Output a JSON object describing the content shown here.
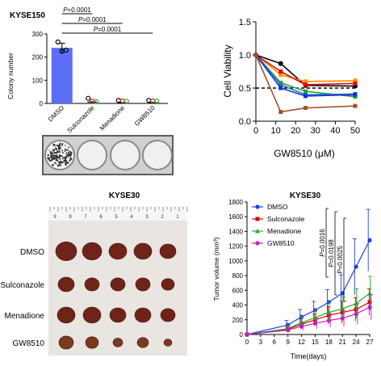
{
  "chart_data": [
    {
      "type": "bar",
      "title": "KYSE150",
      "ylabel": "Colony number",
      "ylim": [
        0,
        300
      ],
      "yticks": [
        0,
        100,
        200,
        300
      ],
      "categories": [
        "DMSO",
        "Sulconazole",
        "Menadione",
        "GW8510"
      ],
      "values": [
        240,
        5,
        3,
        4
      ],
      "errors": [
        20,
        2,
        1,
        1
      ],
      "points": [
        [
          265,
          225,
          230
        ],
        [
          15,
          3,
          0
        ],
        [
          6,
          4,
          2
        ],
        [
          6,
          4,
          3
        ]
      ],
      "point_colors": [
        "#000000",
        "#d62728",
        "#2ca02c",
        "#7b3fb0"
      ],
      "bar_color": "#5b6ef5",
      "significance": [
        "P=0.0001",
        "P=0.0001",
        "P=0.0001"
      ]
    },
    {
      "type": "line",
      "ylabel": "Cell Viability",
      "xlabel": "GW8510 (μM)",
      "xlim": [
        0,
        50
      ],
      "ylim": [
        0,
        1.5
      ],
      "xticks": [
        0,
        10,
        20,
        30,
        40,
        50
      ],
      "yticks": [
        "0.0",
        "0.5",
        "1.0",
        "1.5"
      ],
      "x": [
        0,
        12.5,
        25,
        50
      ],
      "reference_line": 0.5,
      "series": [
        {
          "color": "#000000",
          "values": [
            1.0,
            0.87,
            0.54,
            0.53
          ]
        },
        {
          "color": "#ff8c00",
          "values": [
            1.0,
            0.7,
            0.6,
            0.61
          ]
        },
        {
          "color": "#e60000",
          "values": [
            1.0,
            0.75,
            0.55,
            0.57
          ]
        },
        {
          "color": "#2ca02c",
          "values": [
            1.0,
            0.58,
            0.45,
            0.37
          ]
        },
        {
          "color": "#1f77b4",
          "values": [
            1.0,
            0.55,
            0.4,
            0.41
          ]
        },
        {
          "color": "#1030e0",
          "values": [
            1.0,
            0.5,
            0.38,
            0.4
          ]
        },
        {
          "color": "#a0522d",
          "values": [
            1.0,
            0.14,
            0.2,
            0.23
          ]
        }
      ]
    },
    {
      "type": "line",
      "title": "KYSE30",
      "ylabel": "Tumor volume (mm³)",
      "xlabel": "Time(days)",
      "xlim": [
        0,
        27
      ],
      "ylim": [
        0,
        1800
      ],
      "xticks": [
        0,
        3,
        6,
        9,
        12,
        15,
        18,
        21,
        24,
        27
      ],
      "yticks": [
        0,
        200,
        400,
        600,
        800,
        1000,
        1200,
        1400,
        1600,
        1800
      ],
      "x": [
        0,
        9,
        12,
        15,
        18,
        21,
        24,
        27
      ],
      "series": [
        {
          "name": "DMSO",
          "color": "#1f3fe6",
          "marker": "circle",
          "values": [
            0,
            130,
            240,
            330,
            440,
            560,
            920,
            1280
          ],
          "errors": [
            0,
            60,
            100,
            120,
            170,
            250,
            380,
            420
          ]
        },
        {
          "name": "Sulconazole",
          "color": "#e60000",
          "marker": "square",
          "values": [
            0,
            70,
            140,
            200,
            260,
            300,
            340,
            440
          ],
          "errors": [
            0,
            40,
            70,
            80,
            120,
            150,
            160,
            180
          ]
        },
        {
          "name": "Menadione",
          "color": "#22b022",
          "marker": "triangle",
          "values": [
            0,
            80,
            160,
            230,
            300,
            350,
            420,
            560
          ],
          "errors": [
            0,
            40,
            80,
            100,
            130,
            160,
            200,
            230
          ]
        },
        {
          "name": "GW8510",
          "color": "#c020c0",
          "marker": "circle",
          "values": [
            0,
            60,
            110,
            150,
            190,
            220,
            280,
            370
          ],
          "errors": [
            0,
            30,
            50,
            70,
            90,
            110,
            140,
            170
          ]
        }
      ],
      "significance": [
        "P=0.0016",
        "P=0.0198",
        "P=0.0025"
      ]
    }
  ],
  "tumor_panel": {
    "title": "KYSE30",
    "rows": [
      "DMSO",
      "Sulconazole",
      "Menadione",
      "GW8510"
    ],
    "ruler_numbers": [
      "9",
      "8",
      "7",
      "6",
      "5",
      "4",
      "3",
      "2",
      "1"
    ]
  }
}
